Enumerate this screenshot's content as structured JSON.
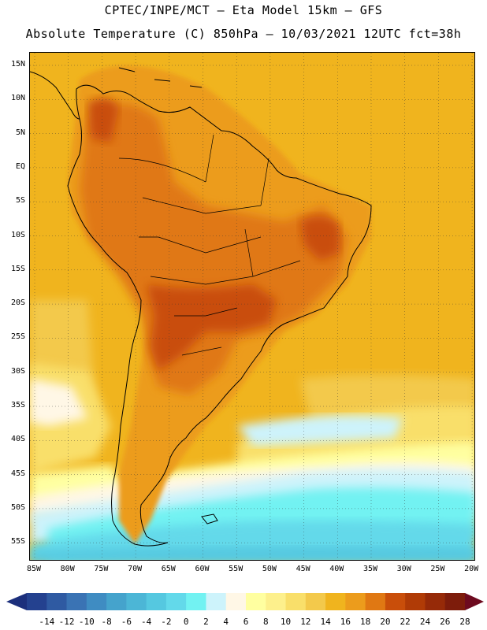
{
  "header": {
    "line1": "CPTEC/INPE/MCT –  Eta Model 15km – GFS",
    "line2": "Absolute Temperature (C) 850hPa – 10/03/2021 12UTC fct=38h"
  },
  "axes": {
    "lat_labels": [
      "15N",
      "10N",
      "5N",
      "EQ",
      "5S",
      "10S",
      "15S",
      "20S",
      "25S",
      "30S",
      "35S",
      "40S",
      "45S",
      "50S",
      "55S"
    ],
    "lon_labels": [
      "85W",
      "80W",
      "75W",
      "70W",
      "65W",
      "60W",
      "55W",
      "50W",
      "45W",
      "40W",
      "35W",
      "30W",
      "25W",
      "20W"
    ]
  },
  "colorbar": {
    "labels": [
      "-14",
      "-12",
      "-10",
      "-8",
      "-6",
      "-4",
      "-2",
      "0",
      "2",
      "4",
      "6",
      "8",
      "10",
      "12",
      "14",
      "16",
      "18",
      "20",
      "22",
      "24",
      "26",
      "28"
    ],
    "colors": [
      "#24418f",
      "#2f5aa2",
      "#3a73b4",
      "#3f8cc2",
      "#45a3cc",
      "#4cb6d6",
      "#55c8e0",
      "#63d9ea",
      "#72f2f2",
      "#cdf3fb",
      "#fff7e6",
      "#ffffa0",
      "#fdf08c",
      "#f9df6a",
      "#f3c94b",
      "#f0b41e",
      "#ec9c1c",
      "#e07813",
      "#c94e0a",
      "#b03b06",
      "#962a08",
      "#7d1c0b"
    ],
    "low_arrow_color": "#1c2f7c",
    "high_arrow_color": "#6d0a1f"
  },
  "map": {
    "ocean_base_color": "#f0b41e",
    "land_hot_color": "#e07813",
    "land_hottest_color": "#c94e0a",
    "coast_color": "#000000"
  }
}
